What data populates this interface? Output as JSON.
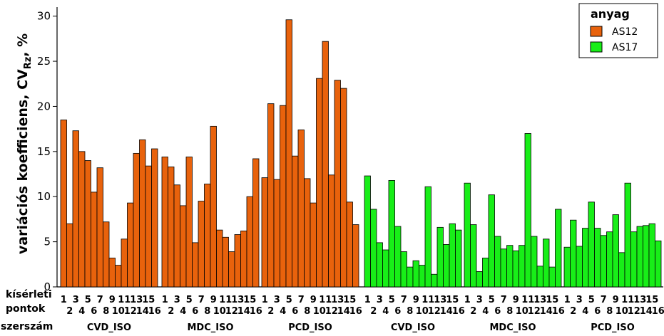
{
  "chart_data": {
    "type": "bar",
    "ylabel": "variációs koefficiens, CV",
    "ylabel_sub": "Rz",
    "ylabel_unit": ", %",
    "ylim": [
      0,
      31
    ],
    "yticks": [
      0,
      5,
      10,
      15,
      20,
      25,
      30
    ],
    "grid": false,
    "legend": {
      "title": "anyag",
      "position": "top-right",
      "entries": [
        {
          "name": "AS12",
          "color": "#e8620c"
        },
        {
          "name": "AS17",
          "color": "#18ee18"
        }
      ]
    },
    "row_labels": {
      "points_line1": "kísérleti",
      "points_line2": "pontok",
      "tool": "szerszám"
    },
    "point_labels": [
      "1",
      "2",
      "3",
      "4",
      "5",
      "6",
      "7",
      "8",
      "9",
      "10",
      "11",
      "12",
      "13",
      "14",
      "15",
      "16"
    ],
    "groups": [
      {
        "label": "CVD_ISO",
        "series": "AS12",
        "values": [
          18.5,
          7.0,
          17.3,
          15.0,
          14.0,
          10.5,
          13.2,
          7.2,
          3.2,
          2.4,
          5.3,
          9.3,
          14.8,
          16.3,
          13.4,
          15.3
        ]
      },
      {
        "label": "MDC_ISO",
        "series": "AS12",
        "values": [
          14.4,
          13.3,
          11.3,
          9.0,
          14.4,
          4.9,
          9.5,
          11.4,
          17.8,
          6.3,
          5.5,
          3.9,
          5.8,
          6.2,
          10.0,
          14.2
        ]
      },
      {
        "label": "PCD_ISO",
        "series": "AS12",
        "values": [
          12.1,
          20.3,
          11.9,
          20.1,
          29.6,
          14.5,
          17.4,
          12.0,
          9.3,
          23.1,
          27.2,
          12.4,
          22.9,
          22.0,
          9.4,
          6.9
        ]
      },
      {
        "label": "CVD_ISO",
        "series": "AS17",
        "values": [
          12.3,
          8.6,
          4.9,
          4.1,
          11.8,
          6.7,
          3.9,
          2.2,
          2.9,
          2.4,
          11.1,
          1.4,
          6.6,
          4.7,
          7.0,
          6.3
        ]
      },
      {
        "label": "MDC_ISO",
        "series": "AS17",
        "values": [
          11.5,
          6.9,
          1.7,
          3.2,
          10.2,
          5.6,
          4.2,
          4.6,
          4.0,
          4.6,
          17.0,
          5.6,
          2.3,
          5.3,
          2.2,
          8.6
        ]
      },
      {
        "label": "PCD_ISO",
        "series": "AS17",
        "values": [
          4.4,
          7.4,
          4.5,
          6.5,
          9.4,
          6.5,
          5.7,
          6.1,
          8.0,
          3.8,
          11.5,
          6.1,
          6.7,
          6.8,
          7.0,
          5.1
        ]
      }
    ]
  }
}
